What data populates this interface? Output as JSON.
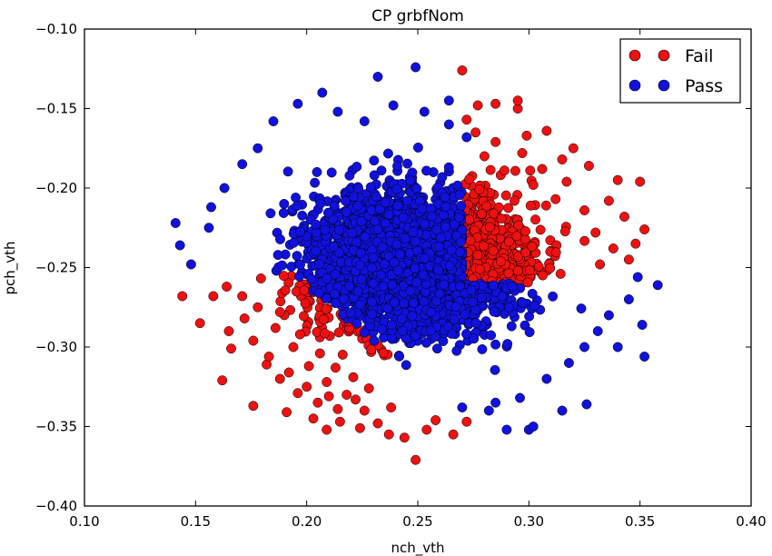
{
  "chart_data": {
    "type": "scatter",
    "title": "CP grbfNom",
    "xlabel": "nch_vth",
    "ylabel": "pch_vth",
    "xlim": [
      0.1,
      0.4
    ],
    "ylim": [
      -0.4,
      -0.1
    ],
    "xticks": [
      "0.10",
      "0.15",
      "0.20",
      "0.25",
      "0.30",
      "0.35",
      "0.40"
    ],
    "yticks": [
      "−0.10",
      "−0.15",
      "−0.20",
      "−0.25",
      "−0.30",
      "−0.35",
      "−0.40"
    ],
    "grid": false,
    "legend_position": "top-right",
    "colors": {
      "fail": "#ee1111",
      "pass": "#1111dd",
      "edge": "#000000"
    },
    "series": [
      {
        "name": "Fail",
        "points": [
          [
            0.27,
            -0.126
          ],
          [
            0.249,
            -0.371
          ],
          [
            0.244,
            -0.357
          ],
          [
            0.237,
            -0.355
          ],
          [
            0.266,
            -0.355
          ],
          [
            0.209,
            -0.352
          ],
          [
            0.224,
            -0.351
          ],
          [
            0.254,
            -0.352
          ],
          [
            0.162,
            -0.321
          ],
          [
            0.144,
            -0.268
          ],
          [
            0.152,
            -0.285
          ],
          [
            0.176,
            -0.337
          ],
          [
            0.191,
            -0.341
          ],
          [
            0.203,
            -0.345
          ],
          [
            0.215,
            -0.347
          ],
          [
            0.232,
            -0.348
          ],
          [
            0.258,
            -0.346
          ],
          [
            0.272,
            -0.347
          ],
          [
            0.34,
            -0.195
          ],
          [
            0.35,
            -0.196
          ],
          [
            0.352,
            -0.226
          ],
          [
            0.348,
            -0.235
          ],
          [
            0.345,
            -0.245
          ],
          [
            0.32,
            -0.175
          ],
          [
            0.308,
            -0.164
          ],
          [
            0.295,
            -0.15
          ],
          [
            0.285,
            -0.147
          ],
          [
            0.277,
            -0.148
          ],
          [
            0.295,
            -0.145
          ],
          [
            0.327,
            -0.186
          ],
          [
            0.336,
            -0.208
          ],
          [
            0.343,
            -0.218
          ],
          [
            0.317,
            -0.196
          ],
          [
            0.306,
            -0.188
          ],
          [
            0.297,
            -0.178
          ],
          [
            0.285,
            -0.171
          ],
          [
            0.276,
            -0.165
          ],
          [
            0.33,
            -0.228
          ],
          [
            0.325,
            -0.214
          ],
          [
            0.312,
            -0.207
          ],
          [
            0.338,
            -0.238
          ],
          [
            0.332,
            -0.248
          ],
          [
            0.302,
            -0.198
          ],
          [
            0.289,
            -0.189
          ],
          [
            0.28,
            -0.18
          ],
          [
            0.272,
            -0.157
          ],
          [
            0.299,
            -0.167
          ],
          [
            0.315,
            -0.182
          ],
          [
            0.165,
            -0.29
          ],
          [
            0.158,
            -0.268
          ],
          [
            0.172,
            -0.282
          ],
          [
            0.166,
            -0.301
          ],
          [
            0.176,
            -0.296
          ],
          [
            0.182,
            -0.311
          ],
          [
            0.188,
            -0.32
          ],
          [
            0.196,
            -0.329
          ],
          [
            0.205,
            -0.335
          ],
          [
            0.214,
            -0.339
          ],
          [
            0.226,
            -0.34
          ],
          [
            0.238,
            -0.338
          ],
          [
            0.178,
            -0.275
          ],
          [
            0.186,
            -0.288
          ],
          [
            0.194,
            -0.3
          ],
          [
            0.201,
            -0.312
          ],
          [
            0.209,
            -0.322
          ],
          [
            0.218,
            -0.33
          ],
          [
            0.164,
            -0.262
          ],
          [
            0.171,
            -0.268
          ],
          [
            0.183,
            -0.306
          ],
          [
            0.192,
            -0.316
          ],
          [
            0.2,
            -0.325
          ],
          [
            0.21,
            -0.331
          ],
          [
            0.222,
            -0.333
          ],
          [
            0.188,
            -0.278
          ],
          [
            0.197,
            -0.292
          ],
          [
            0.206,
            -0.304
          ],
          [
            0.213,
            -0.313
          ],
          [
            0.221,
            -0.319
          ],
          [
            0.228,
            -0.326
          ]
        ]
      },
      {
        "name": "Pass",
        "points": [
          [
            0.249,
            -0.124
          ],
          [
            0.207,
            -0.14
          ],
          [
            0.232,
            -0.13
          ],
          [
            0.264,
            -0.145
          ],
          [
            0.141,
            -0.222
          ],
          [
            0.143,
            -0.236
          ],
          [
            0.148,
            -0.248
          ],
          [
            0.156,
            -0.225
          ],
          [
            0.358,
            -0.261
          ],
          [
            0.351,
            -0.286
          ],
          [
            0.352,
            -0.306
          ],
          [
            0.345,
            -0.27
          ],
          [
            0.349,
            -0.256
          ],
          [
            0.34,
            -0.3
          ],
          [
            0.336,
            -0.28
          ],
          [
            0.3,
            -0.352
          ],
          [
            0.29,
            -0.352
          ],
          [
            0.302,
            -0.35
          ],
          [
            0.315,
            -0.34
          ],
          [
            0.326,
            -0.336
          ],
          [
            0.282,
            -0.34
          ],
          [
            0.27,
            -0.338
          ],
          [
            0.196,
            -0.147
          ],
          [
            0.214,
            -0.152
          ],
          [
            0.185,
            -0.158
          ],
          [
            0.178,
            -0.175
          ],
          [
            0.171,
            -0.185
          ],
          [
            0.163,
            -0.2
          ],
          [
            0.157,
            -0.212
          ],
          [
            0.325,
            -0.3
          ],
          [
            0.331,
            -0.29
          ],
          [
            0.318,
            -0.31
          ],
          [
            0.308,
            -0.32
          ],
          [
            0.296,
            -0.332
          ],
          [
            0.285,
            -0.335
          ],
          [
            0.239,
            -0.148
          ],
          [
            0.253,
            -0.152
          ],
          [
            0.226,
            -0.158
          ],
          [
            0.264,
            -0.16
          ],
          [
            0.272,
            -0.168
          ]
        ]
      }
    ]
  }
}
